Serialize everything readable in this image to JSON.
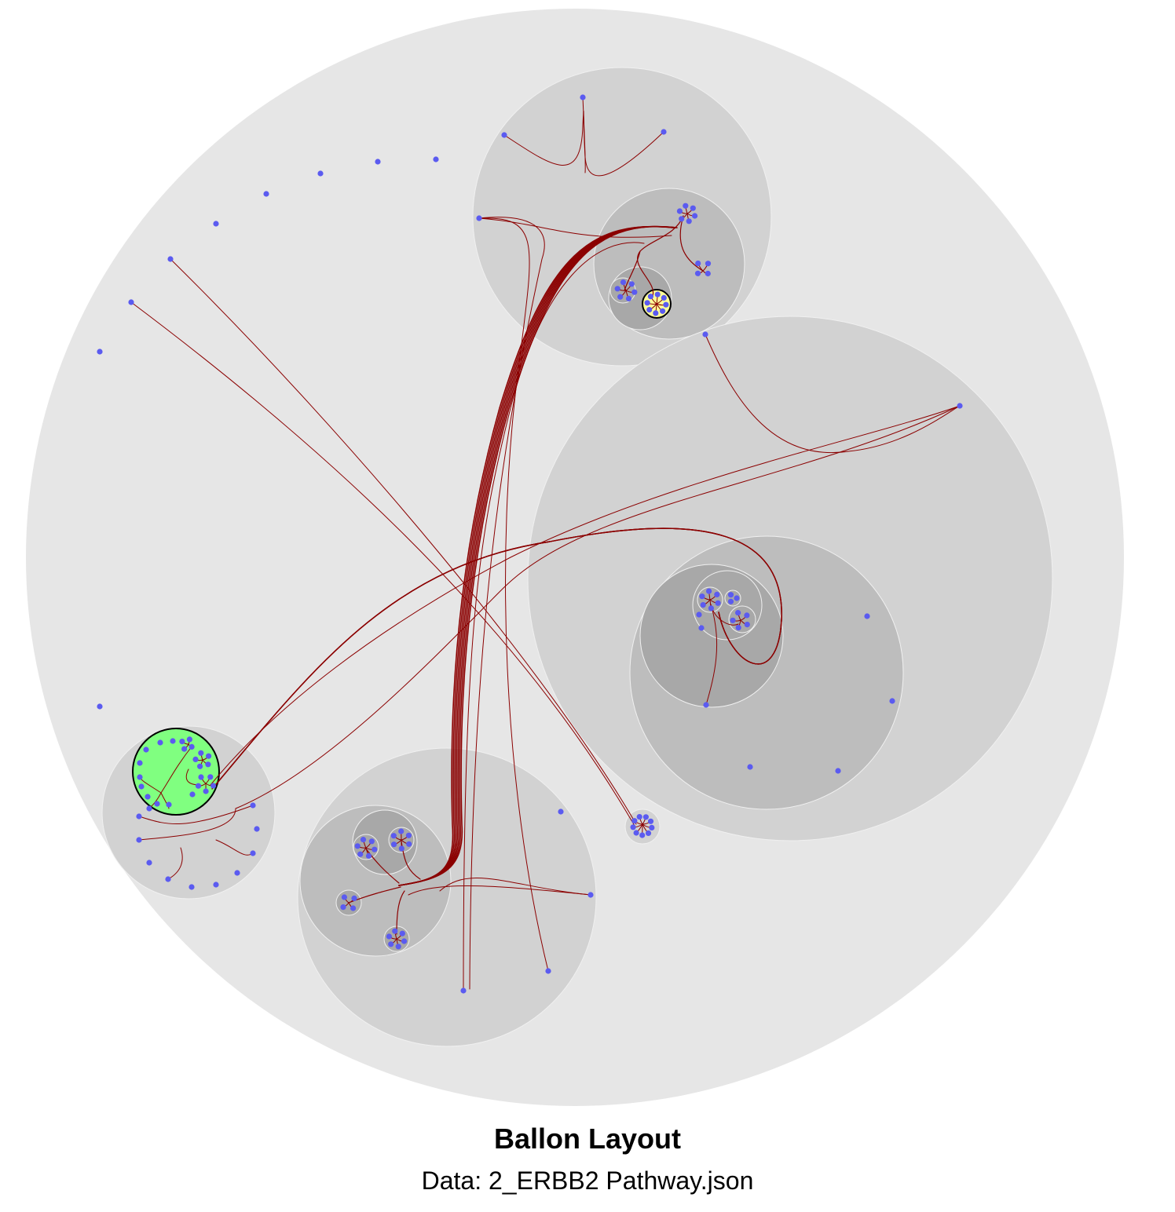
{
  "title": "Ballon Layout",
  "subtitle": "Data: 2_ERBB2 Pathway.json",
  "colors": {
    "node": "#5b5bf0",
    "edge": "#8b0000",
    "group_shades": [
      "#e6e6e6",
      "#d2d2d2",
      "#bdbdbd",
      "#a8a8a8"
    ],
    "group_outline": "#f0f0f0",
    "highlight_green": "#80ff80",
    "highlight_yellow": "#ffff99",
    "highlight_outline": "#000000"
  }
}
